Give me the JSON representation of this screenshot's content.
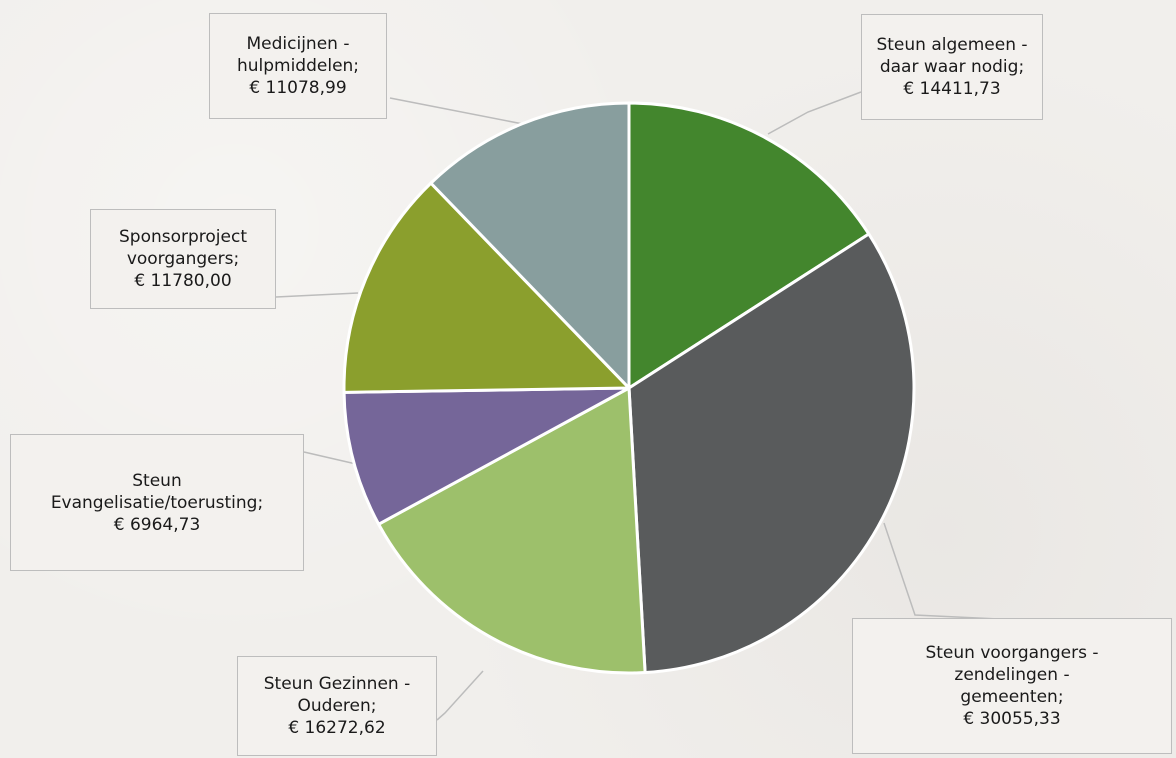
{
  "chart_data": {
    "type": "pie",
    "title": "",
    "currency": "€",
    "slices": [
      {
        "label": [
          "Steun algemeen -",
          "daar waar nodig;",
          "€ 14411,73"
        ],
        "value": 14411.73,
        "color": "#43862d"
      },
      {
        "label": [
          "Steun voorgangers -",
          "zendelingen -",
          "gemeenten;",
          "€ 30055,33"
        ],
        "value": 30055.33,
        "color": "#595b5c"
      },
      {
        "label": [
          "Steun Gezinnen -",
          "Ouderen;",
          "€ 16272,62"
        ],
        "value": 16272.62,
        "color": "#9dc06b"
      },
      {
        "label": [
          "Steun",
          "Evangelisatie/toerusting;",
          "€ 6964,73"
        ],
        "value": 6964.73,
        "color": "#756699"
      },
      {
        "label": [
          "Sponsorproject",
          "voorgangers;",
          "€ 11780,00"
        ],
        "value": 11780.0,
        "color": "#8b9f2d"
      },
      {
        "label": [
          "Medicijnen -",
          "hulpmiddelen;",
          "€ 11078,99"
        ],
        "value": 11078.99,
        "color": "#889e9e"
      }
    ]
  }
}
